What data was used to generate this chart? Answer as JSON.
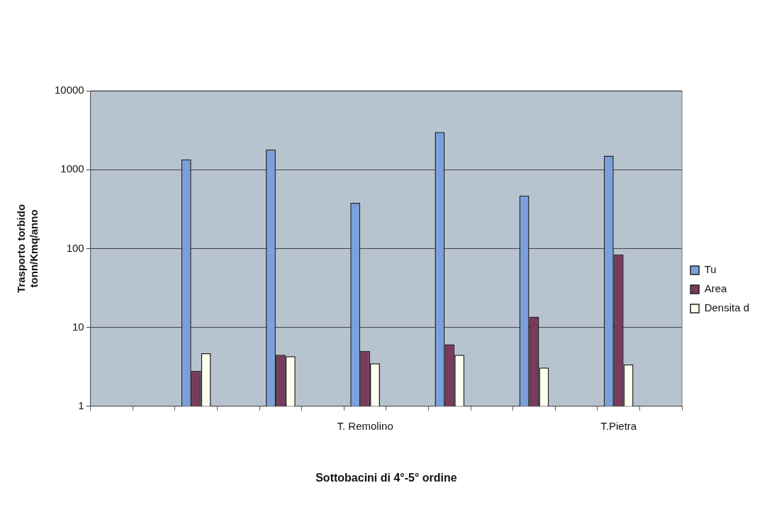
{
  "chart_data": {
    "type": "bar",
    "xlabel": "Sottobacini di 4°-5° ordine",
    "ylabel": "Trasporto torbido\ntonn/Kmq/anno",
    "categories": [
      null,
      null,
      null,
      null,
      null,
      null,
      "T. Remolino",
      null,
      null,
      null,
      null,
      null,
      "T.Pietra",
      null
    ],
    "series": [
      {
        "name": "Tu",
        "color": "#7ba0dc",
        "values": [
          null,
          null,
          1350,
          null,
          1800,
          null,
          380,
          null,
          3000,
          null,
          470,
          null,
          1500,
          null
        ]
      },
      {
        "name": "Area",
        "color": "#7b3a5c",
        "values": [
          null,
          null,
          2.8,
          null,
          4.5,
          null,
          5.0,
          null,
          6.1,
          null,
          13.7,
          null,
          84,
          null
        ]
      },
      {
        "name": "Densita d",
        "color": "#fffff0",
        "values": [
          null,
          null,
          4.7,
          null,
          4.3,
          null,
          3.5,
          null,
          4.5,
          null,
          3.1,
          null,
          3.4,
          null
        ]
      }
    ],
    "log": true,
    "ylim": [
      1,
      10000
    ],
    "yticks": [
      1,
      10,
      100,
      1000,
      10000
    ],
    "grid": "y",
    "legend": "right"
  }
}
